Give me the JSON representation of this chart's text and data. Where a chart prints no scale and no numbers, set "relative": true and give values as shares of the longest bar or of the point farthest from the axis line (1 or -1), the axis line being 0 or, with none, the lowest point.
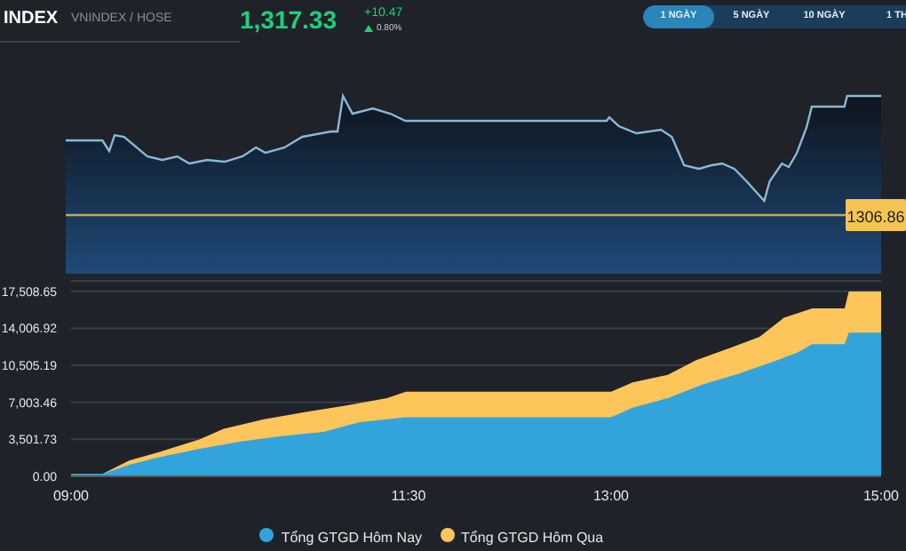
{
  "chart_data": [
    {
      "type": "area",
      "title": "INDEX",
      "subtitle": "VNINDEX / HOSE",
      "annotations": [
        "1,317.33",
        "+10.47",
        "0.80%",
        "1 NGÀY",
        "5 NGÀY",
        "10 NGÀY",
        "1 TH",
        "1306.86"
      ],
      "x": [
        9.0,
        9.27,
        9.32,
        9.36,
        9.43,
        9.6,
        9.71,
        9.82,
        9.91,
        10.04,
        10.17,
        10.3,
        10.4,
        10.47,
        10.61,
        10.74,
        10.95,
        11.0,
        11.04,
        11.11,
        11.26,
        11.39,
        11.5,
        12.98,
        13.0,
        13.07,
        13.2,
        13.38,
        13.46,
        13.55,
        13.66,
        13.75,
        13.83,
        13.92,
        14.01,
        14.14,
        14.18,
        14.27,
        14.32,
        14.38,
        14.45,
        14.49,
        14.73,
        14.75,
        15.0
      ],
      "values": [
        0.75,
        0.75,
        0.69,
        0.78,
        0.77,
        0.66,
        0.64,
        0.66,
        0.62,
        0.64,
        0.63,
        0.66,
        0.71,
        0.68,
        0.71,
        0.77,
        0.8,
        0.8,
        1.0,
        0.9,
        0.93,
        0.9,
        0.86,
        0.86,
        0.88,
        0.83,
        0.79,
        0.81,
        0.77,
        0.61,
        0.59,
        0.61,
        0.62,
        0.59,
        0.52,
        0.41,
        0.52,
        0.62,
        0.6,
        0.68,
        0.82,
        0.94,
        0.94,
        1.0,
        1.0
      ],
      "relative": true,
      "color": "#8ab8d8",
      "xlim": [
        9,
        15
      ],
      "tick_labels": false,
      "ref_lines": [
        {
          "axis": "y",
          "value": 0.33,
          "color": "#f5c451"
        }
      ]
    },
    {
      "type": "area",
      "series": [
        {
          "name": "Tổng GTGD Hôm Nay",
          "color": "#33a3dc",
          "x": [
            9.0,
            9.23,
            9.43,
            9.65,
            9.95,
            10.26,
            10.56,
            10.87,
            11.13,
            11.48,
            13.0,
            13.16,
            13.42,
            13.68,
            13.94,
            14.21,
            14.38,
            14.49,
            14.73,
            14.76,
            15.0
          ],
          "values": [
            200,
            200,
            1100,
            1800,
            2600,
            3300,
            3800,
            4200,
            5100,
            5600,
            5600,
            6500,
            7400,
            8700,
            9700,
            10900,
            11700,
            12500,
            12500,
            13600,
            13600
          ]
        },
        {
          "name": "Tổng GTGD Hôm Qua",
          "color": "#fdc55a",
          "x": [
            9.0,
            9.23,
            9.43,
            9.65,
            9.95,
            10.13,
            10.43,
            10.74,
            11.04,
            11.34,
            11.48,
            13.0,
            13.16,
            13.42,
            13.63,
            13.89,
            14.1,
            14.28,
            14.49,
            14.73,
            14.76,
            15.0
          ],
          "values": [
            200,
            200,
            1500,
            2300,
            3500,
            4500,
            5400,
            6100,
            6700,
            7400,
            8000,
            8000,
            8900,
            9600,
            11000,
            12200,
            13200,
            15000,
            15900,
            15900,
            17500,
            17500
          ]
        }
      ],
      "xlim": [
        9,
        15
      ],
      "xticks": [
        {
          "value": 9,
          "label": "09:00"
        },
        {
          "value": 11.5,
          "label": "11:30"
        },
        {
          "value": 13,
          "label": "13:00"
        },
        {
          "value": 15,
          "label": "15:00"
        }
      ],
      "ylim": [
        0,
        18500
      ],
      "yticks": [
        {
          "value": 0,
          "label": "0.00"
        },
        {
          "value": 3501.73,
          "label": "3,501.73"
        },
        {
          "value": 7003.46,
          "label": "7,003.46"
        },
        {
          "value": 10505.19,
          "label": "10,505.19"
        },
        {
          "value": 14006.92,
          "label": "14,006.92"
        },
        {
          "value": 17508.65,
          "label": "17,508.65"
        }
      ],
      "grid": "y",
      "legend": "bottom"
    }
  ]
}
